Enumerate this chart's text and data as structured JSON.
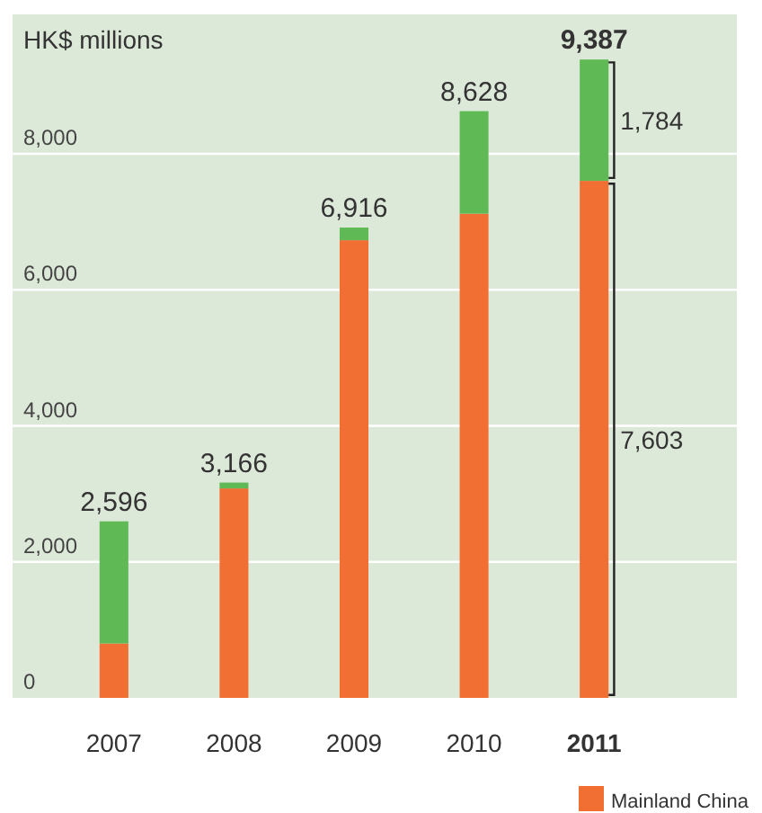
{
  "chart_data": {
    "type": "bar",
    "stacked": true,
    "ylabel": "HK$ millions",
    "categories": [
      "2007",
      "2008",
      "2009",
      "2010",
      "2011"
    ],
    "series": [
      {
        "name": "Mainland China",
        "color": "#f26f33",
        "values": [
          800,
          3080,
          6730,
          7120,
          7603
        ]
      },
      {
        "color": "#5fba55",
        "values": [
          1796,
          86,
          186,
          1508,
          1784
        ]
      }
    ],
    "annotations": [
      {
        "text": "1,784",
        "x": "2011",
        "y": 9387
      },
      "7,603"
    ],
    "totals": [
      "2,596",
      "3,166",
      "6,916",
      "8,628",
      "9,387"
    ],
    "ylim": [
      0,
      9400
    ],
    "yticks": [
      0,
      {
        "value": 2000,
        "label": "2,000"
      },
      {
        "value": 4000,
        "label": "4,000"
      },
      {
        "value": 6000,
        "label": "6,000"
      },
      {
        "value": 8000,
        "label": "8,000"
      }
    ],
    "grid": "y",
    "legend": "bottom right"
  }
}
